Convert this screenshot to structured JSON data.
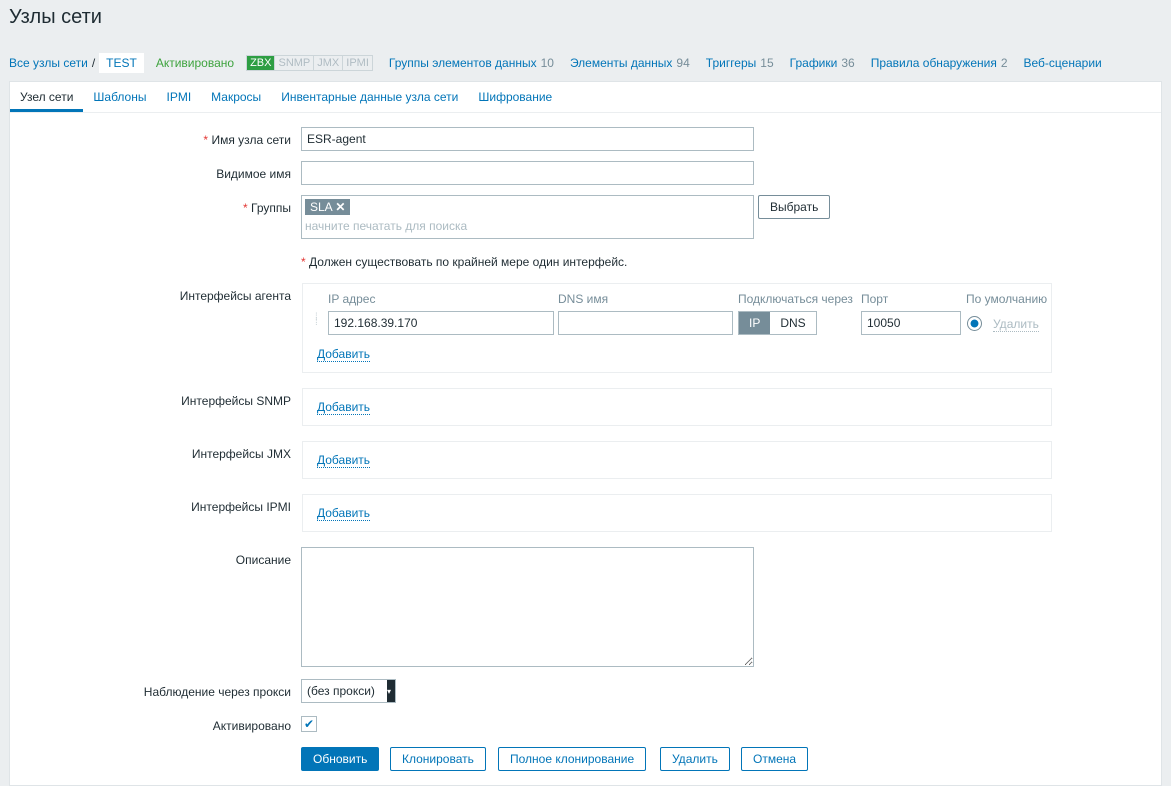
{
  "title": "Узлы сети",
  "nav": {
    "all_hosts": "Все узлы сети",
    "separator": "/",
    "current": "TEST",
    "status": "Активировано",
    "availability": [
      "ZBX",
      "SNMP",
      "JMX",
      "IPMI"
    ],
    "links": [
      {
        "label": "Группы элементов данных",
        "count": "10"
      },
      {
        "label": "Элементы данных",
        "count": "94"
      },
      {
        "label": "Триггеры",
        "count": "15"
      },
      {
        "label": "Графики",
        "count": "36"
      },
      {
        "label": "Правила обнаружения",
        "count": "2"
      },
      {
        "label": "Веб-сценарии",
        "count": ""
      }
    ]
  },
  "tabs": [
    "Узел сети",
    "Шаблоны",
    "IPMI",
    "Макросы",
    "Инвентарные данные узла сети",
    "Шифрование"
  ],
  "form": {
    "host_name_label": "Имя узла сети",
    "host_name": "ESR-agent",
    "visible_name_label": "Видимое имя",
    "visible_name": "",
    "groups_label": "Группы",
    "group_tag": "SLA",
    "groups_placeholder": "начните печатать для поиска",
    "select_button": "Выбрать",
    "interface_warning": "Должен существовать по крайней мере один интерфейс.",
    "agent_label": "Интерфейсы агента",
    "iface_headers": {
      "ip": "IP адрес",
      "dns": "DNS имя",
      "connect": "Подключаться через",
      "port": "Порт",
      "default": "По умолчанию"
    },
    "iface": {
      "ip": "192.168.39.170",
      "dns": "",
      "connect_ip": "IP",
      "connect_dns": "DNS",
      "port": "10050",
      "remove": "Удалить"
    },
    "add": "Добавить",
    "snmp_label": "Интерфейсы SNMP",
    "jmx_label": "Интерфейсы JMX",
    "ipmi_label": "Интерфейсы IPMI",
    "description_label": "Описание",
    "description": "",
    "proxy_label": "Наблюдение через прокси",
    "proxy_value": "(без прокси)",
    "enabled_label": "Активировано",
    "enabled": true
  },
  "buttons": {
    "update": "Обновить",
    "clone": "Клонировать",
    "full_clone": "Полное клонирование",
    "delete": "Удалить",
    "cancel": "Отмена"
  }
}
